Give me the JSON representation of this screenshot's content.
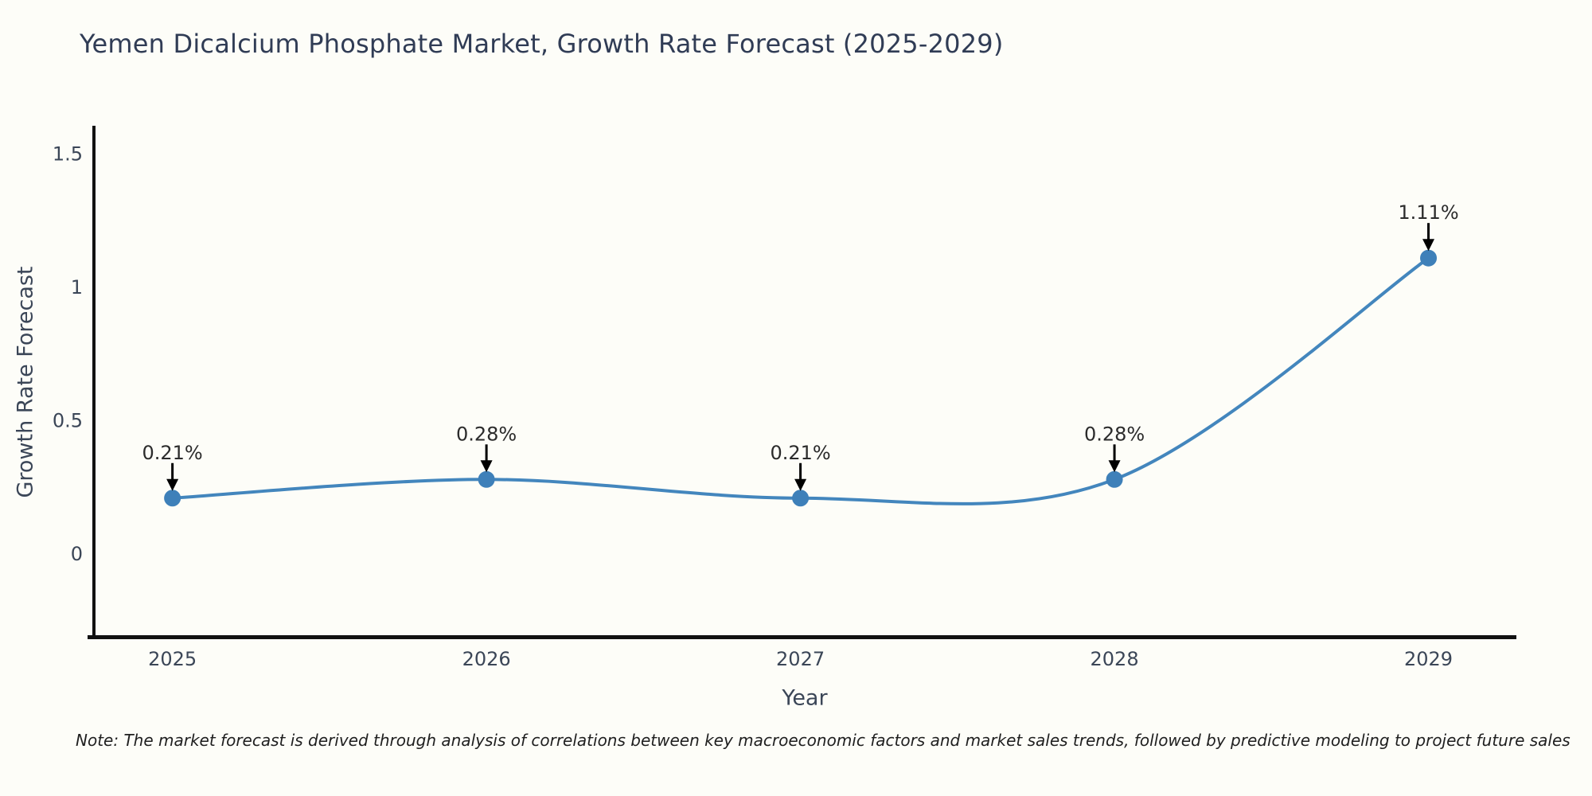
{
  "page": {
    "background": "#fdfdf8"
  },
  "header": {
    "title": "Yemen Dicalcium Phosphate Market, Growth Rate Forecast (2025-2029)"
  },
  "chart_data": {
    "type": "line",
    "title": "Yemen Dicalcium Phosphate Market, Growth Rate Forecast (2025-2029)",
    "x": [
      2025,
      2026,
      2027,
      2028,
      2029
    ],
    "series": [
      {
        "name": "Growth Rate Forecast",
        "values": [
          0.21,
          0.28,
          0.21,
          0.28,
          1.11
        ]
      }
    ],
    "point_labels": [
      "0.21%",
      "0.28%",
      "0.21%",
      "0.28%",
      "1.11%"
    ],
    "xlabel": "Year",
    "ylabel": "Growth Rate Forecast",
    "xtick_labels": [
      "2025",
      "2026",
      "2027",
      "2028",
      "2029"
    ],
    "yticks": [
      0,
      0.5,
      1,
      1.5
    ],
    "ytick_labels": [
      "0",
      "0.5",
      "1",
      "1.5"
    ],
    "xlim": [
      2024.75,
      2029.28
    ],
    "ylim": [
      -0.31,
      1.6
    ],
    "grid": false,
    "legend": null,
    "line_smoothing": "spline",
    "annotation_arrows": "down",
    "colors": {
      "line": "#4386bd",
      "marker": "#3e80b9",
      "annotation_text": "#2b2b2b",
      "arrow": "#000000",
      "axis_text": "#3b4657",
      "title_text": "#303c55",
      "spine": "#111111"
    }
  },
  "footnote": {
    "text": "Note: The market forecast is derived through analysis of correlations between key macroeconomic factors and market sales trends, followed by predictive modeling to project future sales"
  }
}
